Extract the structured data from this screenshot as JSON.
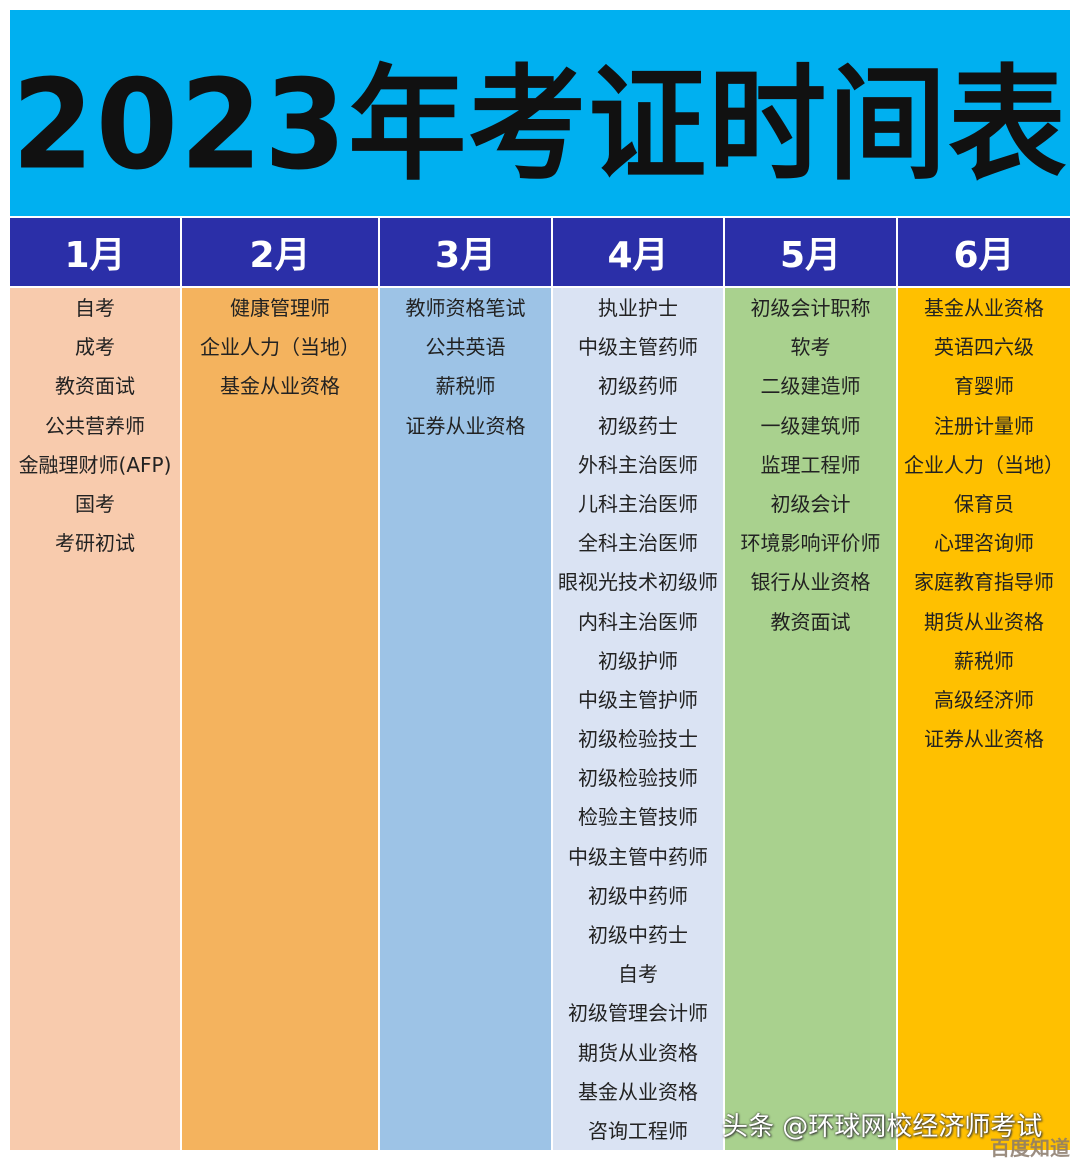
{
  "title": "2023年考证时间表",
  "colors": {
    "title_band": "#00B0F0",
    "header": "#2B2FA8"
  },
  "columns": [
    {
      "month": "1月",
      "color": "#F8CBAD",
      "items": [
        "自考",
        "成考",
        "教资面试",
        "公共营养师",
        "金融理财师(AFP)",
        "国考",
        "考研初试"
      ]
    },
    {
      "month": "2月",
      "color": "#F4B35E",
      "items": [
        "健康管理师",
        "企业人力（当地）",
        "基金从业资格"
      ]
    },
    {
      "month": "3月",
      "color": "#9DC3E6",
      "items": [
        "教师资格笔试",
        "公共英语",
        "薪税师",
        "证券从业资格"
      ]
    },
    {
      "month": "4月",
      "color": "#DAE3F3",
      "items": [
        "执业护士",
        "中级主管药师",
        "初级药师",
        "初级药士",
        "外科主治医师",
        "儿科主治医师",
        "全科主治医师",
        "眼视光技术初级师",
        "内科主治医师",
        "初级护师",
        "中级主管护师",
        "初级检验技士",
        "初级检验技师",
        "检验主管技师",
        "中级主管中药师",
        "初级中药师",
        "初级中药士",
        "自考",
        "初级管理会计师",
        "期货从业资格",
        "基金从业资格",
        "咨询工程师"
      ]
    },
    {
      "month": "5月",
      "color": "#A9D18E",
      "items": [
        "初级会计职称",
        "软考",
        "二级建造师",
        "一级建筑师",
        "监理工程师",
        "初级会计",
        "环境影响评价师",
        "银行从业资格",
        "教资面试"
      ]
    },
    {
      "month": "6月",
      "color": "#FFC000",
      "items": [
        "基金从业资格",
        "英语四六级",
        "育婴师",
        "注册计量师",
        "企业人力（当地）",
        "保育员",
        "心理咨询师",
        "家庭教育指导师",
        "期货从业资格",
        "薪税师",
        "高级经济师",
        "证券从业资格"
      ]
    }
  ],
  "watermark": "头条 @环球网校经济师考试",
  "watermark2": "百度知道"
}
